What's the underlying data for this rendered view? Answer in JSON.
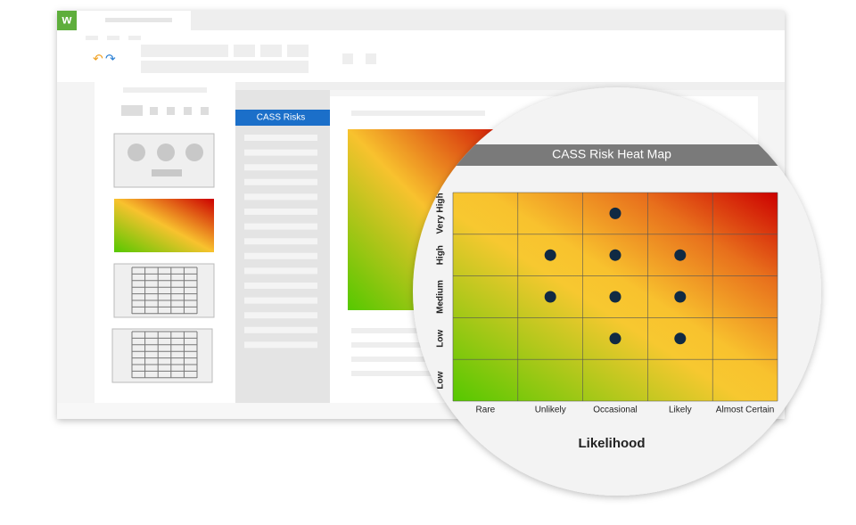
{
  "app": {
    "tab_label": "CASS Risks"
  },
  "chart_data": {
    "type": "heatmap",
    "title": "CASS Risk Heat Map",
    "x_label": "Likelihood",
    "x_categories": [
      "Rare",
      "Unlikely",
      "Occasional",
      "Likely",
      "Almost Certain"
    ],
    "y_categories": [
      "Low",
      "Low",
      "Medium",
      "High",
      "Very High"
    ],
    "points": {
      "color": "#102a43",
      "x": [
        2,
        1,
        2,
        3,
        1,
        2,
        3,
        2,
        3
      ],
      "y": [
        4,
        3,
        3,
        3,
        2,
        2,
        2,
        1,
        1
      ]
    }
  }
}
